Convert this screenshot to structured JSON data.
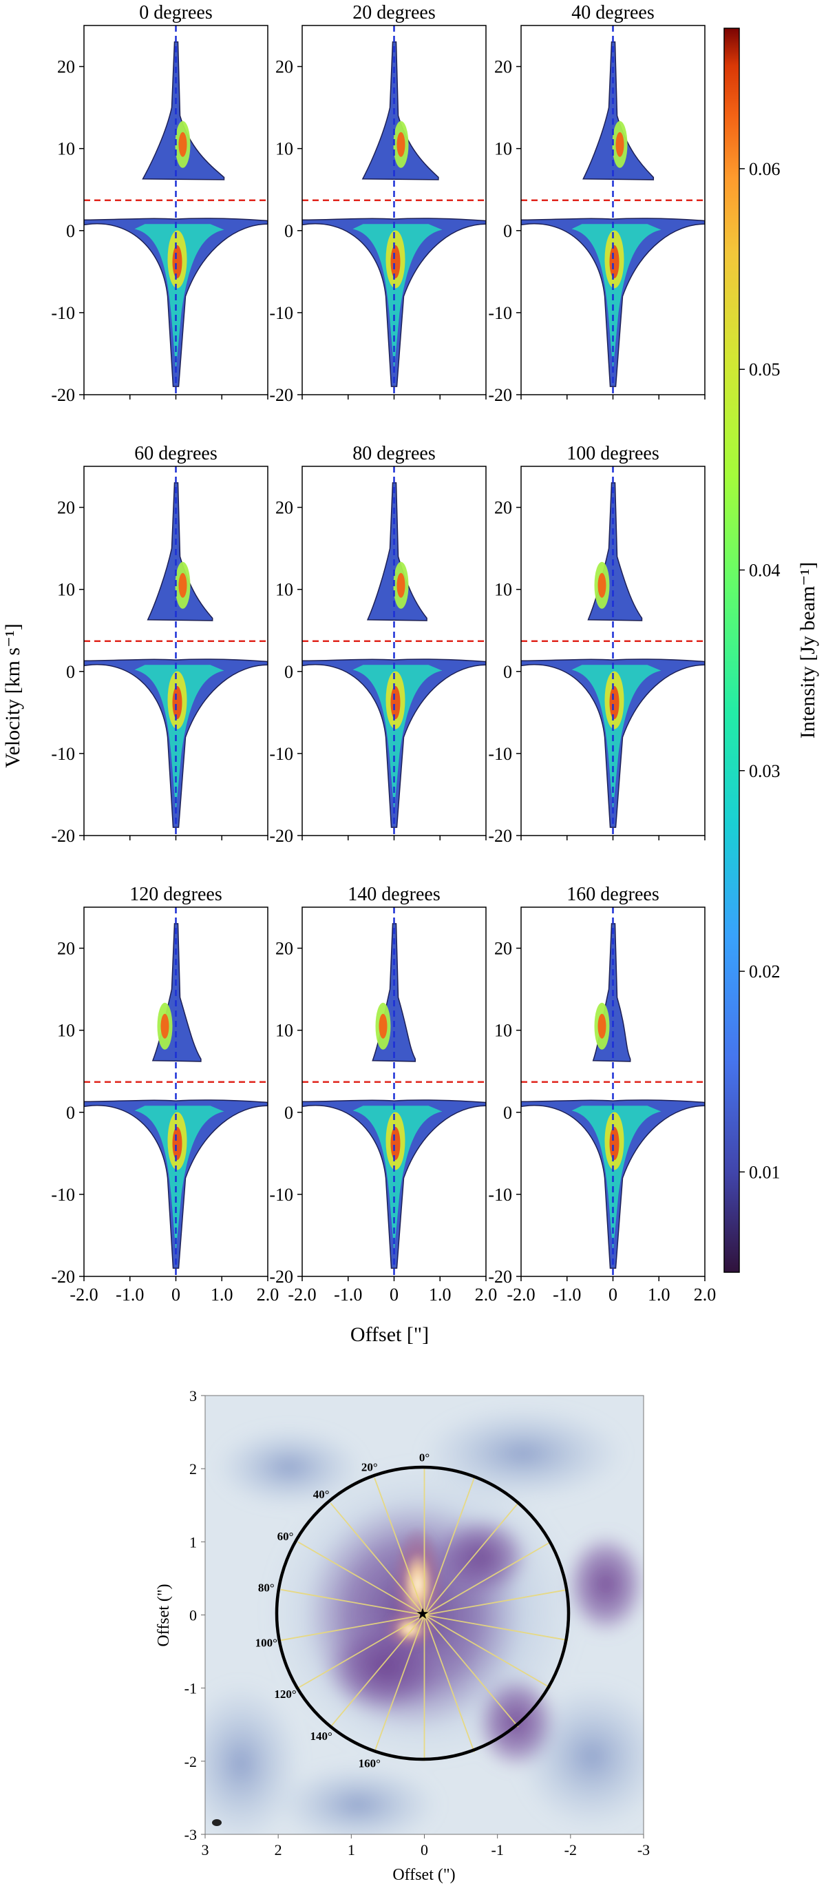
{
  "chart_data": [
    {
      "type": "heatmap",
      "description_type": "position-velocity diagrams grid",
      "panels": [
        {
          "title": "0 degrees",
          "angle": 0
        },
        {
          "title": "20 degrees",
          "angle": 20
        },
        {
          "title": "40 degrees",
          "angle": 40
        },
        {
          "title": "60 degrees",
          "angle": 60
        },
        {
          "title": "80 degrees",
          "angle": 80
        },
        {
          "title": "100 degrees",
          "angle": 100
        },
        {
          "title": "120 degrees",
          "angle": 120
        },
        {
          "title": "140 degrees",
          "angle": 140
        },
        {
          "title": "160 degrees",
          "angle": 160
        }
      ],
      "xlabel": "Offset [\"]",
      "ylabel": "Velocity [km s⁻¹]",
      "xlim": [
        -2.0,
        2.0
      ],
      "ylim": [
        -20,
        25
      ],
      "xticks": [
        "-2.0",
        "-1.0",
        "0",
        "1.0",
        "2.0"
      ],
      "yticks": [
        "-20",
        "-10",
        "0",
        "10",
        "20"
      ],
      "reference_lines": {
        "vertical_offset": 0,
        "horizontal_velocity": 3.7
      },
      "colorbar": {
        "label": "Intensity [Jy beam⁻¹]",
        "range": [
          0.005,
          0.067
        ],
        "ticks": [
          "0.01",
          "0.02",
          "0.03",
          "0.04",
          "0.05",
          "0.06"
        ],
        "tick_values": [
          0.01,
          0.02,
          0.03,
          0.04,
          0.05,
          0.06
        ],
        "colormap": "turbo"
      }
    },
    {
      "type": "heatmap",
      "description_type": "image map with position-angle cuts",
      "xlabel": "Offset (\")",
      "ylabel": "Offset (\")",
      "xlim": [
        3,
        -3
      ],
      "ylim": [
        -3,
        3
      ],
      "xticks": [
        "3",
        "2",
        "1",
        "0",
        "-1",
        "-2",
        "-3"
      ],
      "yticks": [
        "3",
        "2",
        "1",
        "0",
        "-1",
        "-2",
        "-3"
      ],
      "circle_radius_arcsec": 2.0,
      "cut_labels": [
        "0°",
        "20°",
        "40°",
        "60°",
        "80°",
        "100°",
        "120°",
        "140°",
        "160°"
      ],
      "cut_angles": [
        0,
        20,
        40,
        60,
        80,
        100,
        120,
        140,
        160
      ]
    }
  ]
}
